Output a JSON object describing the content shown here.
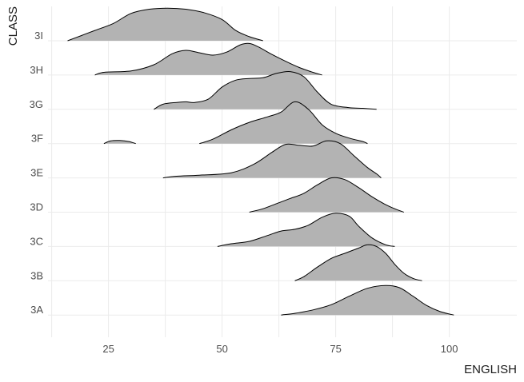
{
  "chart_data": {
    "type": "ridgeline",
    "xlabel": "ENGLISH",
    "ylabel": "CLASS",
    "xlim": [
      7,
      110
    ],
    "x_ticks": [
      25,
      50,
      75,
      100
    ],
    "x_tick_labels": [
      "25",
      "50",
      "75",
      "100"
    ],
    "grid": true,
    "fill_color": "#b3b3b3",
    "line_color": "#000000",
    "categories": [
      "3A",
      "3B",
      "3C",
      "3D",
      "3E",
      "3F",
      "3G",
      "3H",
      "3I"
    ],
    "series": [
      {
        "category": "3A",
        "segments": [
          [
            [
              63,
              0
            ],
            [
              66,
              0.05
            ],
            [
              70,
              0.15
            ],
            [
              74,
              0.3
            ],
            [
              78,
              0.55
            ],
            [
              82,
              0.78
            ],
            [
              86,
              0.86
            ],
            [
              89,
              0.8
            ],
            [
              92,
              0.55
            ],
            [
              95,
              0.28
            ],
            [
              98,
              0.1
            ],
            [
              101,
              0
            ]
          ]
        ]
      },
      {
        "category": "3B",
        "segments": [
          [
            [
              66,
              0
            ],
            [
              68,
              0.12
            ],
            [
              71,
              0.4
            ],
            [
              74,
              0.65
            ],
            [
              77,
              0.8
            ],
            [
              80,
              0.95
            ],
            [
              82,
              1.05
            ],
            [
              84,
              1.0
            ],
            [
              86,
              0.8
            ],
            [
              88,
              0.48
            ],
            [
              90,
              0.22
            ],
            [
              92,
              0.07
            ],
            [
              94,
              0
            ]
          ]
        ]
      },
      {
        "category": "3C",
        "segments": [
          [
            [
              49,
              0
            ],
            [
              52,
              0.08
            ],
            [
              56,
              0.15
            ],
            [
              60,
              0.32
            ],
            [
              63,
              0.45
            ],
            [
              66,
              0.5
            ],
            [
              69,
              0.62
            ],
            [
              72,
              0.85
            ],
            [
              75,
              0.97
            ],
            [
              78,
              0.88
            ],
            [
              80,
              0.6
            ],
            [
              83,
              0.25
            ],
            [
              86,
              0.05
            ],
            [
              88,
              0
            ]
          ]
        ]
      },
      {
        "category": "3D",
        "segments": [
          [
            [
              56,
              0
            ],
            [
              59,
              0.1
            ],
            [
              62,
              0.25
            ],
            [
              65,
              0.4
            ],
            [
              68,
              0.55
            ],
            [
              71,
              0.8
            ],
            [
              74,
              1.0
            ],
            [
              77,
              0.95
            ],
            [
              80,
              0.72
            ],
            [
              83,
              0.45
            ],
            [
              86,
              0.22
            ],
            [
              88,
              0.1
            ],
            [
              90,
              0
            ]
          ]
        ]
      },
      {
        "category": "3E",
        "segments": [
          [
            [
              37,
              0
            ],
            [
              40,
              0.05
            ],
            [
              45,
              0.08
            ],
            [
              52,
              0.15
            ],
            [
              57,
              0.4
            ],
            [
              61,
              0.75
            ],
            [
              64,
              0.98
            ],
            [
              67,
              0.95
            ],
            [
              70,
              0.93
            ],
            [
              73,
              1.08
            ],
            [
              76,
              1.0
            ],
            [
              79,
              0.65
            ],
            [
              82,
              0.3
            ],
            [
              84,
              0.12
            ],
            [
              85,
              0
            ]
          ]
        ]
      },
      {
        "category": "3F",
        "segments": [
          [
            [
              24,
              0
            ],
            [
              25.5,
              0.08
            ],
            [
              27.5,
              0.09
            ],
            [
              29.5,
              0.06
            ],
            [
              31,
              0
            ]
          ],
          [
            [
              45,
              0
            ],
            [
              48,
              0.13
            ],
            [
              52,
              0.4
            ],
            [
              56,
              0.62
            ],
            [
              60,
              0.78
            ],
            [
              63,
              0.92
            ],
            [
              66,
              1.22
            ],
            [
              69,
              1.0
            ],
            [
              72,
              0.55
            ],
            [
              75,
              0.3
            ],
            [
              78,
              0.16
            ],
            [
              81,
              0.06
            ],
            [
              82,
              0
            ]
          ]
        ]
      },
      {
        "category": "3G",
        "segments": [
          [
            [
              35,
              0
            ],
            [
              37,
              0.15
            ],
            [
              40,
              0.2
            ],
            [
              42,
              0.22
            ],
            [
              44,
              0.2
            ],
            [
              47,
              0.3
            ],
            [
              50,
              0.65
            ],
            [
              53,
              0.85
            ],
            [
              56,
              0.9
            ],
            [
              59,
              0.92
            ],
            [
              62,
              1.05
            ],
            [
              65,
              1.1
            ],
            [
              68,
              0.95
            ],
            [
              71,
              0.5
            ],
            [
              74,
              0.15
            ],
            [
              78,
              0.05
            ],
            [
              81,
              0.03
            ],
            [
              84,
              0
            ]
          ]
        ]
      },
      {
        "category": "3H",
        "segments": [
          [
            [
              22,
              0
            ],
            [
              24,
              0.08
            ],
            [
              30,
              0.12
            ],
            [
              35,
              0.3
            ],
            [
              39,
              0.62
            ],
            [
              42,
              0.72
            ],
            [
              45,
              0.65
            ],
            [
              48,
              0.58
            ],
            [
              51,
              0.67
            ],
            [
              54,
              0.88
            ],
            [
              56,
              0.92
            ],
            [
              58,
              0.82
            ],
            [
              61,
              0.6
            ],
            [
              64,
              0.4
            ],
            [
              67,
              0.22
            ],
            [
              70,
              0.08
            ],
            [
              72,
              0
            ]
          ]
        ]
      },
      {
        "category": "3I",
        "segments": [
          [
            [
              16,
              0
            ],
            [
              19,
              0.15
            ],
            [
              22,
              0.3
            ],
            [
              26,
              0.5
            ],
            [
              30,
              0.8
            ],
            [
              34,
              0.92
            ],
            [
              38,
              0.95
            ],
            [
              42,
              0.92
            ],
            [
              46,
              0.82
            ],
            [
              50,
              0.62
            ],
            [
              53,
              0.3
            ],
            [
              56,
              0.12
            ],
            [
              59,
              0
            ]
          ]
        ]
      }
    ]
  }
}
